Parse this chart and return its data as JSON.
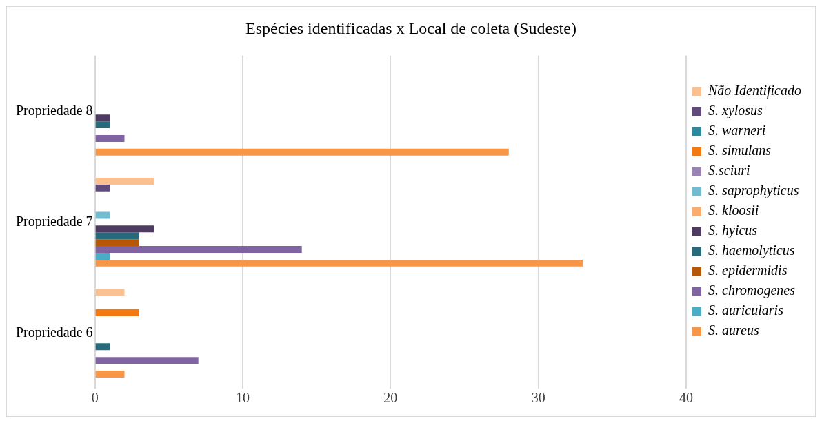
{
  "chart_data": {
    "type": "bar",
    "orientation": "horizontal",
    "title": "Espécies identificadas x Local de coleta (Sudeste)",
    "categories": [
      "Propriedade 8",
      "Propriedade 7",
      "Propriedade 6"
    ],
    "series": [
      {
        "name": "Não Identificado",
        "color": "#fac090",
        "values": [
          null,
          4,
          2
        ]
      },
      {
        "name": "S. xylosus",
        "color": "#604a7b",
        "values": [
          null,
          1,
          null
        ]
      },
      {
        "name": "S. warneri",
        "color": "#2c8aa0",
        "values": [
          null,
          null,
          null
        ]
      },
      {
        "name": "S. simulans",
        "color": "#f47a10",
        "values": [
          null,
          null,
          3
        ]
      },
      {
        "name": "S.sciuri",
        "color": "#9983b5",
        "values": [
          null,
          null,
          null
        ]
      },
      {
        "name": "S. saprophyticus",
        "color": "#71bcd0",
        "values": [
          null,
          1,
          null
        ]
      },
      {
        "name": "S. kloosii",
        "color": "#f9ac6c",
        "values": [
          null,
          null,
          null
        ]
      },
      {
        "name": "S. hyicus",
        "color": "#4d3b62",
        "values": [
          1,
          4,
          null
        ]
      },
      {
        "name": "S. haemolyticus",
        "color": "#276a7c",
        "values": [
          1,
          3,
          1
        ]
      },
      {
        "name": "S. epidermidis",
        "color": "#b65708",
        "values": [
          null,
          3,
          null
        ]
      },
      {
        "name": "S. chromogenes",
        "color": "#8064a2",
        "values": [
          2,
          14,
          7
        ]
      },
      {
        "name": "S. auricularis",
        "color": "#4bacc6",
        "values": [
          null,
          1,
          null
        ]
      },
      {
        "name": "S. aureus",
        "color": "#f79646",
        "values": [
          28,
          33,
          2
        ]
      }
    ],
    "xlim": [
      0,
      40
    ],
    "xticks": [
      0,
      10,
      20,
      30,
      40
    ],
    "grid": "x",
    "legend": "right"
  }
}
